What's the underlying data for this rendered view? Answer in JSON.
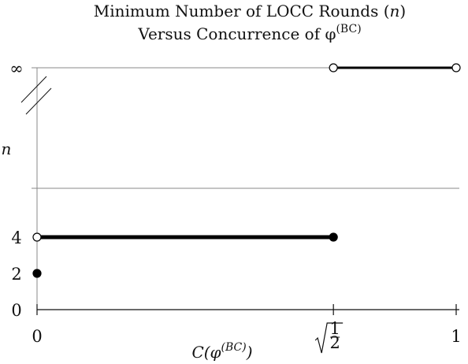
{
  "chart_data": {
    "type": "line",
    "title_line1": "Minimum Number of LOCC Rounds (",
    "title_var": "n",
    "title_line1_end": ")",
    "title_line2": "Versus Concurrence of φ",
    "title_line2_sup": "(BC)",
    "ylabel": "n",
    "xlabel": "C(φ",
    "xlabel_sup": "(BC)",
    "xlabel_end": ")",
    "x_ticks": [
      {
        "value": 0,
        "label": "0"
      },
      {
        "value": 0.7071,
        "label": "√(1/2)",
        "radical": true,
        "num": "1",
        "den": "2"
      },
      {
        "value": 1,
        "label": "1"
      }
    ],
    "y_ticks": [
      {
        "value": 0,
        "label": "0"
      },
      {
        "value": 2,
        "label": "2"
      },
      {
        "value": 4,
        "label": "4"
      },
      {
        "value": "inf",
        "label": "∞"
      }
    ],
    "xlim": [
      0,
      1
    ],
    "ylim": [
      0,
      4
    ],
    "y_axis_break": true,
    "series": [
      {
        "x": [
          0,
          0
        ],
        "y": [
          2,
          2
        ],
        "segment": false,
        "points": [
          {
            "x": 0,
            "y": 2,
            "filled": true
          }
        ]
      },
      {
        "x": [
          0,
          0.7071
        ],
        "y": [
          4,
          4
        ],
        "segment": true,
        "points": [
          {
            "x": 0,
            "y": 4,
            "filled": false
          },
          {
            "x": 0.7071,
            "y": 4,
            "filled": true
          }
        ]
      },
      {
        "x": [
          0.7071,
          1
        ],
        "y": [
          "inf",
          "inf"
        ],
        "segment": true,
        "points": [
          {
            "x": 0.7071,
            "y": "inf",
            "filled": false
          },
          {
            "x": 1,
            "y": "inf",
            "filled": false
          }
        ]
      }
    ]
  }
}
